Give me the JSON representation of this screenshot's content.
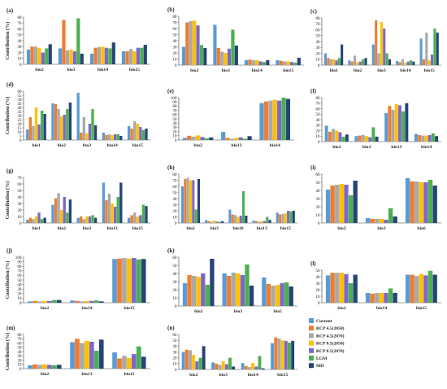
{
  "legend": {
    "series": [
      {
        "name": "Current",
        "color": "#5b9bd5"
      },
      {
        "name": "RCP 4.5(2050)",
        "color": "#ed7d31"
      },
      {
        "name": "RCP 4.5(2070)",
        "color": "#a9a9a9"
      },
      {
        "name": "RCP 8.5(2050)",
        "color": "#ffc000"
      },
      {
        "name": "RCP 8.5(2070)",
        "color": "#7b68c8"
      },
      {
        "name": "LGM",
        "color": "#4caf50"
      },
      {
        "name": "MH",
        "color": "#264478"
      }
    ]
  },
  "chart_data": [
    {
      "id": "a",
      "label": "(a)",
      "type": "bar",
      "ylabel": "Contribution (%)",
      "ylim": [
        0,
        80
      ],
      "yticks": [
        0,
        10,
        20,
        30,
        40,
        50,
        60,
        70,
        80
      ],
      "categories": [
        "bio2",
        "bio3",
        "bio14",
        "bio15"
      ],
      "values": [
        [
          25,
          30,
          30,
          28,
          20,
          27,
          34
        ],
        [
          27,
          75,
          24,
          25,
          22,
          78,
          18
        ],
        [
          18,
          28,
          29,
          30,
          28,
          27,
          37
        ],
        [
          22,
          22,
          26,
          22,
          28,
          28,
          33
        ]
      ]
    },
    {
      "id": "b",
      "label": "(b)",
      "type": "bar",
      "ylabel": "",
      "ylim": [
        0,
        80
      ],
      "yticks": [
        0,
        10,
        20,
        30,
        40,
        50,
        60,
        70,
        80
      ],
      "categories": [
        "bio2",
        "bio3",
        "bio14",
        "bio15"
      ],
      "values": [
        [
          30,
          70,
          72,
          73,
          65,
          33,
          28
        ],
        [
          66,
          28,
          22,
          20,
          27,
          58,
          32
        ],
        [
          8,
          9,
          8,
          8,
          6,
          5,
          8
        ],
        [
          8,
          7,
          6,
          6,
          5,
          4,
          12
        ]
      ]
    },
    {
      "id": "c",
      "label": "(c)",
      "type": "bar",
      "ylabel": "",
      "ylim": [
        0,
        80
      ],
      "yticks": [
        0,
        10,
        20,
        30,
        40,
        50,
        60,
        70,
        80
      ],
      "categories": [
        "bio1",
        "bio2",
        "bio3",
        "bio14",
        "bio15"
      ],
      "values": [
        [
          20,
          12,
          10,
          10,
          8,
          12,
          35
        ],
        [
          8,
          6,
          16,
          5,
          6,
          10,
          12
        ],
        [
          35,
          76,
          20,
          73,
          62,
          20,
          10
        ],
        [
          7,
          5,
          10,
          4,
          6,
          8,
          6
        ],
        [
          45,
          10,
          55,
          8,
          18,
          62,
          55
        ]
      ]
    },
    {
      "id": "d",
      "label": "(d)",
      "type": "bar",
      "ylabel": "Contribution (%)",
      "ylim": [
        0,
        60
      ],
      "yticks": [
        0,
        5,
        10,
        15,
        20,
        25,
        30,
        35,
        40,
        45,
        50,
        55,
        60
      ],
      "categories": [
        "bio1",
        "bio2",
        "bio3",
        "bio14",
        "bio15"
      ],
      "values": [
        [
          13,
          28,
          17,
          40,
          19,
          36,
          32
        ],
        [
          45,
          44,
          38,
          29,
          31,
          38,
          46
        ],
        [
          58,
          9,
          28,
          8,
          20,
          38,
          18
        ],
        [
          9,
          6,
          7,
          6,
          7,
          7,
          5
        ],
        [
          17,
          14,
          23,
          20,
          16,
          12,
          14
        ]
      ]
    },
    {
      "id": "e",
      "label": "(e)",
      "type": "bar",
      "ylabel": "",
      "ylim": [
        0,
        100
      ],
      "yticks": [
        0,
        10,
        20,
        30,
        40,
        50,
        60,
        70,
        80,
        90,
        100
      ],
      "categories": [
        "bio2",
        "bio13",
        "bio14"
      ],
      "values": [
        [
          5,
          10,
          8,
          11,
          7,
          4,
          6
        ],
        [
          19,
          5,
          3,
          5,
          6,
          3,
          9
        ],
        [
          87,
          91,
          93,
          95,
          93,
          100,
          97
        ]
      ]
    },
    {
      "id": "f",
      "label": "(f)",
      "type": "bar",
      "ylabel": "",
      "ylim": [
        0,
        80
      ],
      "yticks": [
        0,
        10,
        20,
        30,
        40,
        50,
        60,
        70,
        80
      ],
      "categories": [
        "bio2",
        "bio3",
        "bio13",
        "bio14"
      ],
      "values": [
        [
          29,
          18,
          23,
          20,
          17,
          9,
          13
        ],
        [
          10,
          11,
          12,
          10,
          8,
          26,
          9
        ],
        [
          52,
          65,
          58,
          68,
          66,
          55,
          70
        ],
        [
          14,
          12,
          11,
          11,
          12,
          15,
          10
        ]
      ]
    },
    {
      "id": "g",
      "label": "(g)",
      "type": "bar",
      "ylabel": "Contribution (%)",
      "ylim": [
        0,
        70
      ],
      "yticks": [
        0,
        10,
        20,
        30,
        40,
        50,
        60,
        70
      ],
      "categories": [
        "bio1",
        "bio2",
        "bio3",
        "bio13",
        "bio15"
      ],
      "values": [
        [
          5,
          8,
          6,
          10,
          16,
          6,
          8
        ],
        [
          28,
          38,
          46,
          20,
          40,
          16,
          36
        ],
        [
          8,
          10,
          6,
          10,
          10,
          12,
          8
        ],
        [
          62,
          35,
          45,
          30,
          25,
          40,
          62
        ],
        [
          8,
          12,
          16,
          10,
          12,
          28,
          26
        ]
      ]
    },
    {
      "id": "h",
      "label": "(h)",
      "type": "bar",
      "ylabel": "",
      "ylim": [
        0,
        80
      ],
      "yticks": [
        0,
        10,
        20,
        30,
        40,
        50,
        60,
        70,
        80
      ],
      "categories": [
        "bio2",
        "bio3",
        "bio10",
        "bio13",
        "bio15"
      ],
      "values": [
        [
          60,
          72,
          74,
          70,
          70,
          22,
          72
        ],
        [
          5,
          3,
          2,
          4,
          2,
          2,
          3
        ],
        [
          22,
          14,
          13,
          10,
          12,
          52,
          12
        ],
        [
          4,
          3,
          2,
          3,
          3,
          10,
          5
        ],
        [
          17,
          14,
          15,
          16,
          20,
          19,
          20
        ]
      ]
    },
    {
      "id": "i",
      "label": "(i)",
      "type": "bar",
      "ylabel": "",
      "ylim": [
        0,
        60
      ],
      "yticks": [
        0,
        10,
        20,
        30,
        40,
        50,
        60
      ],
      "categories": [
        "bio2",
        "bio3",
        "bio6"
      ],
      "values": [
        [
          41,
          46,
          47,
          48,
          47,
          34,
          52
        ],
        [
          6,
          5,
          5,
          5,
          4,
          18,
          8
        ],
        [
          55,
          51,
          51,
          50,
          50,
          53,
          46
        ]
      ]
    },
    {
      "id": "j",
      "label": "(j)",
      "type": "bar",
      "ylabel": "Contribution (%)",
      "ylim": [
        0,
        100
      ],
      "yticks": [
        0,
        10,
        20,
        30,
        40,
        50,
        60,
        70,
        80,
        90,
        100
      ],
      "categories": [
        "bio2",
        "bio14",
        "bio15"
      ],
      "values": [
        [
          3,
          4,
          3,
          4,
          4,
          6,
          6
        ],
        [
          5,
          4,
          3,
          4,
          4,
          5,
          3
        ],
        [
          96,
          97,
          98,
          97,
          98,
          95,
          96
        ]
      ]
    },
    {
      "id": "k",
      "label": "(k)",
      "type": "bar",
      "ylabel": "",
      "ylim": [
        0,
        60
      ],
      "yticks": [
        0,
        10,
        20,
        30,
        40,
        50,
        60
      ],
      "categories": [
        "bio2",
        "bio3",
        "bio5"
      ],
      "values": [
        [
          28,
          38,
          37,
          36,
          40,
          26,
          58
        ],
        [
          40,
          37,
          41,
          40,
          38,
          51,
          25
        ],
        [
          35,
          27,
          25,
          26,
          28,
          29,
          24
        ]
      ]
    },
    {
      "id": "l",
      "label": "(l)",
      "type": "bar",
      "ylabel": "",
      "ylim": [
        0,
        50
      ],
      "yticks": [
        0,
        10,
        20,
        30,
        40,
        50
      ],
      "categories": [
        "bio2",
        "bio14",
        "bio15"
      ],
      "values": [
        [
          42,
          46,
          46,
          46,
          44,
          30,
          43
        ],
        [
          15,
          14,
          15,
          15,
          15,
          22,
          15
        ],
        [
          43,
          43,
          41,
          44,
          42,
          49,
          43
        ]
      ]
    },
    {
      "id": "m",
      "label": "(m)",
      "type": "bar",
      "ylabel": "Contribution (%)",
      "ylim": [
        0,
        80
      ],
      "yticks": [
        0,
        10,
        20,
        30,
        40,
        50,
        60,
        70,
        80
      ],
      "categories": [
        "bio2",
        "bio13",
        "bio11"
      ],
      "values": [
        [
          8,
          10,
          9,
          10,
          9,
          8,
          9
        ],
        [
          62,
          70,
          60,
          65,
          63,
          42,
          68
        ],
        [
          38,
          24,
          30,
          25,
          34,
          52,
          28
        ]
      ]
    },
    {
      "id": "n",
      "label": "(n)",
      "type": "bar",
      "ylabel": "",
      "ylim": [
        0,
        60
      ],
      "yticks": [
        0,
        10,
        20,
        30,
        40,
        50,
        60
      ],
      "categories": [
        "bio2",
        "bio3",
        "bio14",
        "bio15"
      ],
      "values": [
        [
          30,
          34,
          33,
          25,
          14,
          20,
          40
        ],
        [
          12,
          10,
          8,
          14,
          9,
          20,
          5
        ],
        [
          11,
          6,
          4,
          11,
          5,
          23,
          2
        ],
        [
          45,
          55,
          53,
          50,
          49,
          46,
          49
        ]
      ]
    }
  ]
}
